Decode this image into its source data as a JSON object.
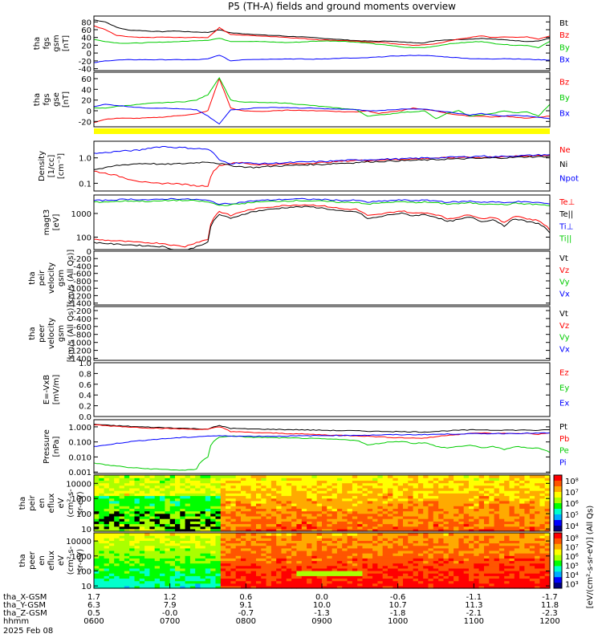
{
  "title": "P5 (TH-A) fields and ground moments overview",
  "colors": {
    "black": "#000000",
    "red": "#ff0000",
    "green": "#00cc00",
    "blue": "#0000ff",
    "yellow": "#ffff00"
  },
  "chart_data": [
    {
      "type": "line",
      "ylabel": [
        "tha",
        "fgs",
        "gsm",
        "[nT]"
      ],
      "yticks": [
        -40,
        -20,
        0,
        20,
        40,
        60,
        80
      ],
      "ylim": [
        -45,
        95
      ],
      "log": false,
      "series": [
        {
          "name": "Bt",
          "color": "#000000",
          "values": [
            85,
            80,
            66,
            59,
            58,
            56,
            55,
            57,
            55,
            54,
            53,
            60,
            52,
            50,
            48,
            46,
            45,
            43,
            42,
            40,
            38,
            36,
            34,
            32,
            31,
            30,
            31,
            28,
            27,
            26,
            32,
            34,
            35,
            36,
            38,
            36,
            34,
            32,
            30,
            31,
            38
          ]
        },
        {
          "name": "Bz",
          "color": "#ff0000",
          "values": [
            70,
            60,
            45,
            42,
            40,
            40,
            41,
            40,
            40,
            40,
            40,
            65,
            48,
            46,
            45,
            43,
            42,
            40,
            38,
            36,
            34,
            33,
            32,
            30,
            28,
            28,
            25,
            22,
            20,
            21,
            24,
            30,
            36,
            40,
            44,
            40,
            42,
            40,
            42,
            36,
            44
          ]
        },
        {
          "name": "By",
          "color": "#00cc00",
          "values": [
            35,
            30,
            26,
            25,
            26,
            27,
            28,
            29,
            30,
            32,
            33,
            38,
            30,
            30,
            30,
            29,
            28,
            27,
            28,
            30,
            31,
            31,
            30,
            28,
            26,
            22,
            20,
            15,
            14,
            14,
            18,
            23,
            26,
            28,
            30,
            25,
            22,
            20,
            20,
            14,
            30
          ]
        },
        {
          "name": "Bx",
          "color": "#0000ff",
          "values": [
            -25,
            -20,
            -18,
            -17,
            -17,
            -17,
            -17,
            -17,
            -17,
            -17,
            -15,
            -5,
            -20,
            -17,
            -16,
            -16,
            -15,
            -15,
            -15,
            -16,
            -15,
            -14,
            -13,
            -13,
            -12,
            -10,
            -8,
            -7,
            -6,
            -6,
            -8,
            -10,
            -12,
            -14,
            -15,
            -15,
            -14,
            -15,
            -16,
            -17,
            -18
          ]
        }
      ]
    },
    {
      "type": "line",
      "ylabel": [
        "tha",
        "fgs",
        "gse",
        "[nT]"
      ],
      "yticks": [
        -20,
        0,
        20,
        40,
        60
      ],
      "ylim": [
        -30,
        72
      ],
      "log": false,
      "series": [
        {
          "name": "Bz",
          "color": "#ff0000",
          "values": [
            -22,
            -16,
            -14,
            -14,
            -14,
            -13,
            -12,
            -10,
            -8,
            -6,
            0,
            60,
            5,
            0,
            -1,
            -1,
            0,
            1,
            1,
            0,
            0,
            -1,
            -2,
            -2,
            0,
            -5,
            -2,
            0,
            5,
            2,
            0,
            -5,
            -8,
            -10,
            -10,
            -12,
            -10,
            -12,
            -14,
            -12,
            -10
          ]
        },
        {
          "name": "By",
          "color": "#00cc00",
          "values": [
            5,
            5,
            8,
            10,
            12,
            14,
            15,
            16,
            17,
            20,
            30,
            62,
            20,
            16,
            16,
            15,
            15,
            14,
            12,
            10,
            8,
            6,
            4,
            2,
            -10,
            -8,
            -6,
            -3,
            -2,
            0,
            -15,
            -5,
            0,
            -10,
            -8,
            -5,
            0,
            -4,
            -2,
            -10,
            12
          ]
        },
        {
          "name": "Bx",
          "color": "#0000ff",
          "values": [
            8,
            12,
            10,
            8,
            6,
            5,
            5,
            4,
            3,
            2,
            -10,
            -25,
            2,
            3,
            5,
            6,
            6,
            6,
            5,
            5,
            4,
            3,
            3,
            2,
            0,
            0,
            2,
            3,
            3,
            3,
            0,
            -2,
            -5,
            -8,
            -5,
            -8,
            -10,
            -8,
            -10,
            -12,
            -15
          ]
        }
      ]
    },
    {
      "type": "line",
      "ylabel": [
        "Density",
        "[1/cc]",
        "[cm⁻³]"
      ],
      "yticks": [
        "0.1",
        "1.0"
      ],
      "ylim": [
        0.05,
        4.5
      ],
      "log": true,
      "series": [
        {
          "name": "Ne",
          "color": "#ff0000",
          "values": [
            0.3,
            0.25,
            0.2,
            0.15,
            0.12,
            0.1,
            0.1,
            0.1,
            0.09,
            0.08,
            0.08,
            0.5,
            0.6,
            0.65,
            0.55,
            0.55,
            0.55,
            0.58,
            0.6,
            0.62,
            0.65,
            0.7,
            0.75,
            0.8,
            0.8,
            0.82,
            0.85,
            0.88,
            0.9,
            0.95,
            1.0,
            1.0,
            1.05,
            1.1,
            1.0,
            1.1,
            1.1,
            1.15,
            1.2,
            1.25,
            1.3
          ]
        },
        {
          "name": "Ni",
          "color": "#000000",
          "values": [
            0.35,
            0.4,
            0.5,
            0.55,
            0.6,
            0.6,
            0.55,
            0.58,
            0.6,
            0.65,
            0.7,
            0.6,
            0.5,
            0.45,
            0.42,
            0.45,
            0.48,
            0.5,
            0.52,
            0.55,
            0.55,
            0.6,
            0.62,
            0.65,
            0.7,
            0.72,
            0.75,
            0.78,
            0.8,
            0.82,
            0.85,
            0.9,
            0.9,
            0.95,
            0.95,
            1.0,
            1.0,
            1.05,
            1.1,
            1.1,
            1.15
          ]
        },
        {
          "name": "Npot",
          "color": "#0000ff",
          "values": [
            1.5,
            1.6,
            1.8,
            1.9,
            2.0,
            2.5,
            2.8,
            2.6,
            2.5,
            2.3,
            2.2,
            0.8,
            0.6,
            0.65,
            0.6,
            0.6,
            0.62,
            0.65,
            0.68,
            0.7,
            0.72,
            0.75,
            0.8,
            0.82,
            0.85,
            0.88,
            0.9,
            0.92,
            0.95,
            1.0,
            1.0,
            1.05,
            1.1,
            1.1,
            1.2,
            1.1,
            1.15,
            1.2,
            1.25,
            1.3,
            1.35
          ]
        }
      ]
    },
    {
      "type": "line",
      "ylabel": [
        "magt3",
        "[eV]"
      ],
      "yticks": [
        "100",
        "1000"
      ],
      "ylim": [
        30,
        6000
      ],
      "log": true,
      "series": [
        {
          "name": "Te⊥",
          "color": "#ff0000",
          "values": [
            80,
            75,
            70,
            65,
            60,
            58,
            55,
            45,
            40,
            60,
            80,
            1200,
            800,
            1200,
            1500,
            1800,
            2000,
            2200,
            2300,
            2300,
            2100,
            1800,
            1500,
            1500,
            800,
            900,
            1100,
            1300,
            1000,
            1100,
            900,
            600,
            700,
            900,
            600,
            700,
            400,
            800,
            600,
            500,
            200
          ]
        },
        {
          "name": "Te||",
          "color": "#000000",
          "values": [
            60,
            55,
            50,
            48,
            45,
            42,
            40,
            30,
            25,
            40,
            60,
            900,
            600,
            900,
            1200,
            1400,
            1600,
            1800,
            1900,
            1900,
            1700,
            1400,
            1200,
            1200,
            600,
            700,
            900,
            1000,
            800,
            900,
            700,
            450,
            550,
            700,
            450,
            550,
            300,
            600,
            450,
            380,
            150
          ]
        },
        {
          "name": "Ti⊥",
          "color": "#0000ff",
          "values": [
            3500,
            3600,
            3800,
            4000,
            3900,
            3700,
            4000,
            4200,
            4000,
            3900,
            3500,
            2500,
            2600,
            3000,
            3400,
            3600,
            3800,
            4000,
            4100,
            4000,
            3900,
            3700,
            3500,
            3600,
            3000,
            3200,
            3500,
            3700,
            3500,
            3600,
            3400,
            3000,
            3100,
            3300,
            3000,
            3100,
            2800,
            3200,
            3000,
            2900,
            2500
          ]
        },
        {
          "name": "Ti||",
          "color": "#00cc00",
          "values": [
            3000,
            3100,
            3200,
            3400,
            3300,
            3200,
            3400,
            3600,
            3500,
            3400,
            3000,
            2200,
            2300,
            2600,
            3000,
            3100,
            3300,
            3400,
            3500,
            3400,
            3300,
            3100,
            2900,
            3000,
            2500,
            2700,
            3000,
            3100,
            2900,
            3000,
            2800,
            2500,
            2600,
            2800,
            2500,
            2600,
            2300,
            2700,
            2500,
            2400,
            2100
          ]
        }
      ]
    },
    {
      "type": "line",
      "ylabel": [
        "tha",
        "peir",
        "velocity",
        "gsm",
        "[km/s (All Qs)]"
      ],
      "yticks": [
        "-1400",
        "-1200",
        "-1000",
        "-800",
        "-600",
        "-400",
        "-200",
        "0"
      ],
      "ylim": [
        -1450,
        0
      ],
      "log": false,
      "series": [],
      "legend": [
        {
          "name": "Vt",
          "color": "#000000"
        },
        {
          "name": "Vz",
          "color": "#ff0000"
        },
        {
          "name": "Vy",
          "color": "#00cc00"
        },
        {
          "name": "Vx",
          "color": "#0000ff"
        }
      ]
    },
    {
      "type": "line",
      "ylabel": [
        "tha",
        "peer",
        "velocity",
        "gsm",
        "[km/s (All Qs)]"
      ],
      "yticks": [
        "-1400",
        "-1200",
        "-1000",
        "-800",
        "-600",
        "-400",
        "-200"
      ],
      "ylim": [
        -1450,
        -100
      ],
      "log": false,
      "series": [],
      "legend": [
        {
          "name": "Vt",
          "color": "#000000"
        },
        {
          "name": "Vz",
          "color": "#ff0000"
        },
        {
          "name": "Vy",
          "color": "#00cc00"
        },
        {
          "name": "Vx",
          "color": "#0000ff"
        }
      ]
    },
    {
      "type": "line",
      "ylabel": [
        "E=-VxB",
        "[mV/m]"
      ],
      "yticks": [
        "0.0",
        "0.2",
        "0.4",
        "0.6",
        "0.8",
        "1.0"
      ],
      "ylim": [
        0,
        1
      ],
      "log": false,
      "series": [],
      "legend": [
        {
          "name": "Ez",
          "color": "#ff0000"
        },
        {
          "name": "Ey",
          "color": "#00cc00"
        },
        {
          "name": "Ex",
          "color": "#0000ff"
        }
      ]
    },
    {
      "type": "line",
      "ylabel": [
        "Pressure",
        "[nPa]"
      ],
      "yticks": [
        "0.001",
        "0.010",
        "0.100",
        "1.000"
      ],
      "ylim": [
        0.0008,
        3
      ],
      "log": true,
      "series": [
        {
          "name": "Pt",
          "color": "#000000",
          "values": [
            1.5,
            1.3,
            1.2,
            1.1,
            1.0,
            0.95,
            0.9,
            0.85,
            0.8,
            0.75,
            0.72,
            1.2,
            0.8,
            0.75,
            0.72,
            0.7,
            0.68,
            0.66,
            0.64,
            0.62,
            0.6,
            0.58,
            0.56,
            0.55,
            0.52,
            0.5,
            0.5,
            0.48,
            0.47,
            0.46,
            0.5,
            0.55,
            0.6,
            0.62,
            0.65,
            0.6,
            0.62,
            0.6,
            0.62,
            0.58,
            0.65
          ]
        },
        {
          "name": "Pb",
          "color": "#ff0000",
          "values": [
            1.4,
            1.2,
            1.1,
            1.0,
            0.9,
            0.85,
            0.8,
            0.75,
            0.72,
            0.7,
            0.68,
            1.0,
            0.5,
            0.45,
            0.42,
            0.4,
            0.38,
            0.36,
            0.34,
            0.32,
            0.3,
            0.28,
            0.27,
            0.26,
            0.24,
            0.22,
            0.2,
            0.19,
            0.18,
            0.18,
            0.22,
            0.28,
            0.32,
            0.36,
            0.4,
            0.36,
            0.38,
            0.35,
            0.38,
            0.32,
            0.4
          ]
        },
        {
          "name": "Pe",
          "color": "#00cc00",
          "values": [
            0.004,
            0.003,
            0.0025,
            0.002,
            0.0018,
            0.0016,
            0.0015,
            0.0014,
            0.0013,
            0.0015,
            0.01,
            0.2,
            0.25,
            0.22,
            0.2,
            0.2,
            0.19,
            0.18,
            0.18,
            0.17,
            0.16,
            0.15,
            0.14,
            0.13,
            0.06,
            0.08,
            0.1,
            0.11,
            0.08,
            0.09,
            0.05,
            0.04,
            0.05,
            0.06,
            0.04,
            0.05,
            0.03,
            0.05,
            0.04,
            0.04,
            0.02
          ]
        },
        {
          "name": "Pi",
          "color": "#0000ff",
          "values": [
            0.05,
            0.06,
            0.08,
            0.1,
            0.12,
            0.14,
            0.16,
            0.18,
            0.2,
            0.22,
            0.25,
            0.25,
            0.25,
            0.24,
            0.24,
            0.24,
            0.24,
            0.25,
            0.25,
            0.26,
            0.26,
            0.27,
            0.27,
            0.28,
            0.28,
            0.29,
            0.3,
            0.3,
            0.3,
            0.31,
            0.32,
            0.33,
            0.34,
            0.35,
            0.35,
            0.36,
            0.36,
            0.37,
            0.38,
            0.38,
            0.4
          ]
        }
      ]
    },
    {
      "type": "heatmap",
      "ylabel": [
        "tha",
        "peir",
        "en",
        "eflux",
        "eV",
        "(cm²-s-",
        "sr-eV)"
      ],
      "yticks": [
        "10",
        "100",
        "1000",
        "10000"
      ],
      "ylim": [
        7,
        35000
      ],
      "log": true,
      "colorbar_label": "[eV/(cm²-s-sr-eV)] (All Qs)",
      "colorbar_ticks": [
        "10⁴",
        "10⁵",
        "10⁶",
        "10⁷",
        "10⁸"
      ]
    },
    {
      "type": "heatmap",
      "ylabel": [
        "tha",
        "peer",
        "en",
        "eflux",
        "eV",
        "(cm²-s-",
        "sr-eV)"
      ],
      "yticks": [
        "10",
        "100",
        "1000",
        "10000"
      ],
      "ylim": [
        7,
        35000
      ],
      "log": true,
      "colorbar_label": "[eV/(cm²-s-sr-eV)] (All Qs)",
      "colorbar_ticks": [
        "10³",
        "10⁴",
        "10⁵",
        "10⁶",
        "10⁷",
        "10⁸"
      ]
    }
  ],
  "x_axis": {
    "rows": [
      {
        "label": "tha_X-GSM",
        "values": [
          "1.7",
          "1.2",
          "0.6",
          "0.0",
          "-0.6",
          "-1.1",
          "-1.7"
        ]
      },
      {
        "label": "tha_Y-GSM",
        "values": [
          "6.3",
          "7.9",
          "9.1",
          "10.0",
          "10.7",
          "11.3",
          "11.8"
        ]
      },
      {
        "label": "tha_Z-GSM",
        "values": [
          "0.5",
          "-0.0",
          "-0.7",
          "-1.3",
          "-1.8",
          "-2.1",
          "-2.3"
        ]
      },
      {
        "label": "hhmm",
        "values": [
          "0600",
          "0700",
          "0800",
          "0900",
          "1000",
          "1100",
          "1200"
        ]
      }
    ],
    "date": "2025 Feb 08"
  }
}
